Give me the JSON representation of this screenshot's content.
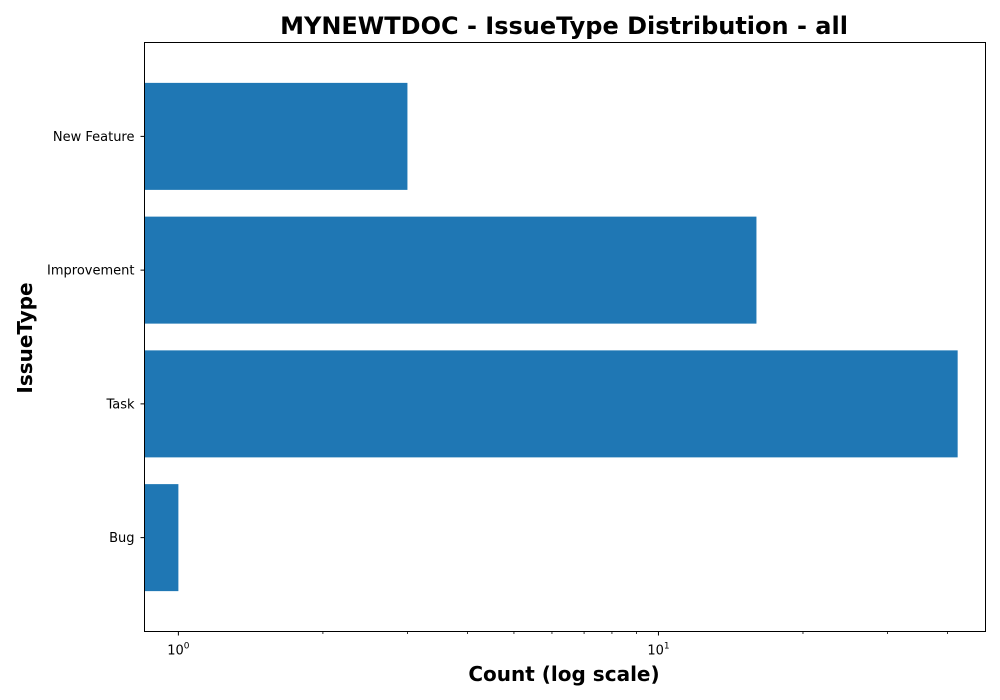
{
  "chart_data": {
    "type": "bar",
    "orientation": "horizontal",
    "title": "MYNEWTDOC - IssueType Distribution - all",
    "xlabel": "Count (log scale)",
    "ylabel": "IssueType",
    "x_scale": "log",
    "xlim": [
      0.85,
      48
    ],
    "x_major_ticks": [
      {
        "value": 1,
        "base": "10",
        "exp": "0"
      },
      {
        "value": 10,
        "base": "10",
        "exp": "1"
      }
    ],
    "x_minor_ticks": [
      2,
      3,
      4,
      5,
      6,
      7,
      8,
      9,
      20,
      30,
      40
    ],
    "categories": [
      "Bug",
      "Task",
      "Improvement",
      "New Feature"
    ],
    "values": [
      1,
      42,
      16,
      3
    ],
    "bar_color": "#1f77b4",
    "grid": false,
    "legend": "none"
  }
}
